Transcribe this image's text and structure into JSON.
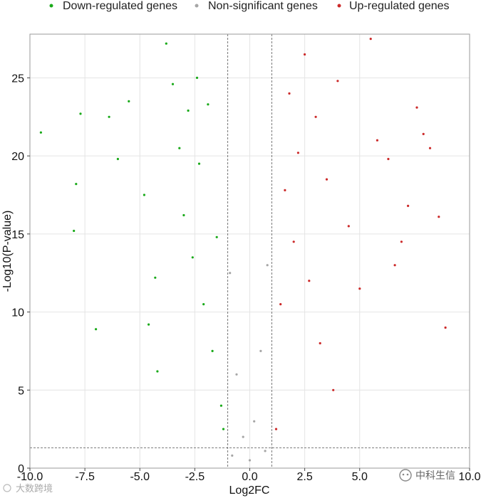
{
  "chart_data": {
    "type": "scatter",
    "title": "",
    "xlabel": "Log2FC",
    "ylabel": "-Log10(P-value)",
    "xlim": [
      -10,
      10
    ],
    "ylim": [
      0,
      27.8
    ],
    "xticks": [
      -10,
      -7.5,
      -5,
      -2.5,
      0,
      2.5,
      5,
      10
    ],
    "xtick_labels": [
      "-10.0",
      "-7.5",
      "-5.0",
      "-2.5",
      "0.0",
      "2.5",
      "5.0",
      "10.0"
    ],
    "yticks": [
      0,
      5,
      10,
      15,
      20,
      25
    ],
    "ytick_labels": [
      "0",
      "5",
      "10",
      "15",
      "20",
      "25"
    ],
    "grid": true,
    "thresholds": {
      "log2fc": [
        -1,
        1
      ],
      "neg_log10_p": 1.3
    },
    "legend_position": "top",
    "series": [
      {
        "name": "Down-regulated genes",
        "color": "#1aaa1a",
        "values": [
          [
            -9.5,
            21.5
          ],
          [
            -7.9,
            18.2
          ],
          [
            -7.7,
            22.7
          ],
          [
            -8,
            15.2
          ],
          [
            -7.0,
            8.9
          ],
          [
            -6.4,
            22.5
          ],
          [
            -6.0,
            19.8
          ],
          [
            -5.5,
            23.5
          ],
          [
            -4.8,
            17.5
          ],
          [
            -4.6,
            9.2
          ],
          [
            -4.3,
            12.2
          ],
          [
            -4.2,
            6.2
          ],
          [
            -3.8,
            27.2
          ],
          [
            -3.5,
            24.6
          ],
          [
            -3.2,
            20.5
          ],
          [
            -3.0,
            16.2
          ],
          [
            -2.8,
            22.9
          ],
          [
            -2.6,
            13.5
          ],
          [
            -2.4,
            25.0
          ],
          [
            -2.3,
            19.5
          ],
          [
            -2.1,
            10.5
          ],
          [
            -1.9,
            23.3
          ],
          [
            -1.7,
            7.5
          ],
          [
            -1.5,
            14.8
          ],
          [
            -1.3,
            4.0
          ],
          [
            -1.2,
            2.5
          ]
        ]
      },
      {
        "name": "Non-significant genes",
        "color": "#a6a6a6",
        "values": [
          [
            -0.9,
            12.5
          ],
          [
            -0.6,
            6.0
          ],
          [
            -0.3,
            2.0
          ],
          [
            0.0,
            0.5
          ],
          [
            0.2,
            3.0
          ],
          [
            0.5,
            7.5
          ],
          [
            0.8,
            13.0
          ],
          [
            -0.8,
            0.8
          ],
          [
            0.7,
            1.1
          ]
        ]
      },
      {
        "name": "Up-regulated genes",
        "color": "#cc2a2a",
        "values": [
          [
            1.2,
            2.5
          ],
          [
            1.4,
            10.5
          ],
          [
            1.6,
            17.8
          ],
          [
            1.8,
            24.0
          ],
          [
            2.0,
            14.5
          ],
          [
            2.2,
            20.2
          ],
          [
            2.5,
            26.5
          ],
          [
            2.7,
            12.0
          ],
          [
            3.0,
            22.5
          ],
          [
            3.2,
            8.0
          ],
          [
            3.5,
            18.5
          ],
          [
            3.8,
            5.0
          ],
          [
            4.0,
            24.8
          ],
          [
            4.5,
            15.5
          ],
          [
            5.0,
            11.5
          ],
          [
            5.5,
            27.5
          ],
          [
            5.8,
            21.0
          ],
          [
            6.3,
            19.8
          ],
          [
            6.6,
            13.0
          ],
          [
            6.9,
            14.5
          ],
          [
            7.2,
            16.8
          ],
          [
            7.6,
            23.1
          ],
          [
            7.9,
            21.4
          ],
          [
            8.2,
            20.5
          ],
          [
            8.6,
            16.1
          ],
          [
            8.9,
            9.0
          ]
        ]
      }
    ]
  },
  "watermarks": {
    "left": "大数跨境",
    "right": "中科生信"
  }
}
